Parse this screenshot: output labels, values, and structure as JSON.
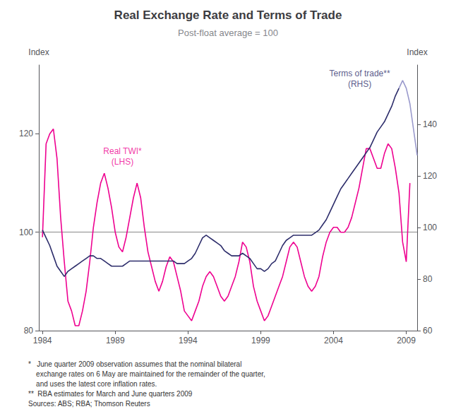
{
  "chart_data": {
    "type": "line",
    "title": "Real Exchange Rate and Terms of Trade",
    "subtitle": "Post-float average = 100",
    "ylabel": "Index",
    "y2label": "Index",
    "xlim": [
      1983.75,
      2009.75
    ],
    "xticks": [
      1984,
      1989,
      1994,
      1999,
      2004,
      2009
    ],
    "ylim": [
      80,
      134
    ],
    "yticks": [
      80,
      100,
      120
    ],
    "y2lim": [
      60,
      163
    ],
    "y2ticks": [
      60,
      80,
      100,
      120,
      140
    ],
    "grid": false,
    "reference_lines": [
      {
        "y": 100,
        "color": "#888888"
      }
    ],
    "series": [
      {
        "color": "#EE0090",
        "x": [
          1984,
          1984.25,
          1984.5,
          1984.75,
          1985,
          1985.25,
          1985.5,
          1985.75,
          1986,
          1986.25,
          1986.5,
          1986.75,
          1987,
          1987.25,
          1987.5,
          1987.75,
          1988,
          1988.25,
          1988.5,
          1988.75,
          1989,
          1989.25,
          1989.5,
          1989.75,
          1990,
          1990.25,
          1990.5,
          1990.75,
          1991,
          1991.25,
          1991.5,
          1991.75,
          1992,
          1992.25,
          1992.5,
          1992.75,
          1993,
          1993.25,
          1993.5,
          1993.75,
          1994,
          1994.25,
          1994.5,
          1994.75,
          1995,
          1995.25,
          1995.5,
          1995.75,
          1996,
          1996.25,
          1996.5,
          1996.75,
          1997,
          1997.25,
          1997.5,
          1997.75,
          1998,
          1998.25,
          1998.5,
          1998.75,
          1999,
          1999.25,
          1999.5,
          1999.75,
          2000,
          2000.25,
          2000.5,
          2000.75,
          2001,
          2001.25,
          2001.5,
          2001.75,
          2002,
          2002.25,
          2002.5,
          2002.75,
          2003,
          2003.25,
          2003.5,
          2003.75,
          2004,
          2004.25,
          2004.5,
          2004.75,
          2005,
          2005.25,
          2005.5,
          2005.75,
          2006,
          2006.25,
          2006.5,
          2006.75,
          2007,
          2007.25,
          2007.5,
          2007.75,
          2008,
          2008.25,
          2008.5,
          2008.75,
          2009,
          2009.25
        ],
        "values": [
          99.0,
          118.0,
          120.0,
          121.0,
          115.0,
          103.0,
          94.0,
          86.0,
          84.0,
          81.0,
          81.0,
          84.0,
          88.0,
          94.0,
          101.0,
          106.0,
          110.0,
          112.0,
          109.0,
          105.0,
          100.0,
          97.0,
          96.0,
          99.0,
          103.0,
          107.0,
          110.0,
          107.0,
          101.0,
          96.0,
          93.0,
          90.0,
          88.0,
          90.0,
          93.0,
          95.0,
          94.0,
          91.0,
          88.0,
          84.0,
          83.0,
          82.0,
          84.0,
          86.0,
          89.0,
          91.0,
          92.0,
          91.0,
          89.0,
          87.0,
          86.0,
          87.0,
          89.0,
          91.0,
          94.0,
          98.0,
          97.0,
          94.0,
          89.0,
          86.0,
          84.0,
          82.0,
          83.0,
          85.0,
          87.0,
          89.0,
          91.0,
          94.0,
          97.0,
          98.0,
          97.0,
          94.0,
          91.0,
          89.0,
          88.0,
          89.0,
          91.0,
          95.0,
          98.0,
          100.0,
          101.0,
          101.0,
          100.0,
          100.0,
          101.0,
          103.0,
          106.0,
          109.0,
          113.0,
          117.0,
          117.0,
          115.0,
          113.0,
          113.0,
          116.0,
          118.0,
          117.0,
          113.0,
          108.0,
          98.0,
          94.0,
          110.0
        ]
      },
      {
        "color": "#2d2d6b",
        "axis": "y2",
        "x": [
          1984,
          1984.25,
          1984.5,
          1984.75,
          1985,
          1985.25,
          1985.5,
          1985.75,
          1986,
          1986.25,
          1986.5,
          1986.75,
          1987,
          1987.25,
          1987.5,
          1987.75,
          1988,
          1988.25,
          1988.5,
          1988.75,
          1989,
          1989.25,
          1989.5,
          1989.75,
          1990,
          1990.25,
          1990.5,
          1990.75,
          1991,
          1991.25,
          1991.5,
          1991.75,
          1992,
          1992.25,
          1992.5,
          1992.75,
          1993,
          1993.25,
          1993.5,
          1993.75,
          1994,
          1994.25,
          1994.5,
          1994.75,
          1995,
          1995.25,
          1995.5,
          1995.75,
          1996,
          1996.25,
          1996.5,
          1996.75,
          1997,
          1997.25,
          1997.5,
          1997.75,
          1998,
          1998.25,
          1998.5,
          1998.75,
          1999,
          1999.25,
          1999.5,
          1999.75,
          2000,
          2000.25,
          2000.5,
          2000.75,
          2001,
          2001.25,
          2001.5,
          2001.75,
          2002,
          2002.25,
          2002.5,
          2002.75,
          2003,
          2003.25,
          2003.5,
          2003.75,
          2004,
          2004.25,
          2004.5,
          2004.75,
          2005,
          2005.25,
          2005.5,
          2005.75,
          2006,
          2006.25,
          2006.5,
          2006.75,
          2007,
          2007.25,
          2007.5,
          2007.75,
          2008,
          2008.25,
          2008.5
        ],
        "values": [
          99.0,
          96.0,
          93.0,
          89.0,
          85.0,
          83.0,
          81.0,
          83.0,
          84.0,
          85.0,
          86.0,
          87.0,
          88.0,
          89.0,
          89.0,
          88.0,
          88.0,
          87.0,
          86.0,
          85.0,
          85.0,
          85.0,
          85.0,
          86.0,
          87.0,
          87.0,
          87.0,
          87.0,
          87.0,
          87.0,
          87.0,
          87.0,
          87.0,
          87.0,
          87.0,
          87.0,
          87.0,
          86.0,
          86.0,
          86.0,
          87.0,
          88.0,
          90.0,
          93.0,
          96.0,
          97.0,
          96.0,
          95.0,
          94.0,
          93.0,
          91.0,
          90.0,
          89.0,
          89.0,
          89.0,
          90.0,
          89.0,
          88.0,
          86.0,
          84.0,
          84.0,
          83.0,
          84.0,
          86.0,
          87.0,
          90.0,
          93.0,
          95.0,
          96.0,
          97.0,
          97.0,
          97.0,
          97.0,
          97.0,
          97.0,
          98.0,
          99.0,
          101.0,
          103.0,
          106.0,
          109.0,
          112.0,
          115.0,
          117.0,
          119.0,
          121.0,
          123.0,
          125.0,
          127.0,
          129.0,
          131.0,
          134.0,
          137.0,
          139.0,
          141.0,
          144.0,
          147.0,
          151.0,
          154.0
        ]
      },
      {
        "color": "#9999cc",
        "axis": "y2",
        "x": [
          2008.5,
          2008.75,
          2009,
          2009.25,
          2009.5,
          2009.75
        ],
        "values": [
          154.0,
          157.0,
          154.0,
          148.0,
          138.0,
          128.0
        ]
      }
    ],
    "annotations": [
      {
        "text": "Real TWI*\n(LHS)",
        "x": 1989.5,
        "y": 113.0,
        "color": "#EE0090"
      },
      {
        "text": "Terms of trade**\n(RHS)",
        "x": 2005.8,
        "y": 153.0,
        "axis": "y2",
        "color": "#2d2d6b"
      }
    ],
    "footnote": "*   June quarter 2009 observation assumes that the nominal bilateral\n    exchange rates on 6 May are maintained for the remainder of the quarter,\n    and uses the latest core inflation rates.\n**  RBA estimates for March and June quarters 2009\nSources: ABS; RBA; Thomson Reuters"
  }
}
